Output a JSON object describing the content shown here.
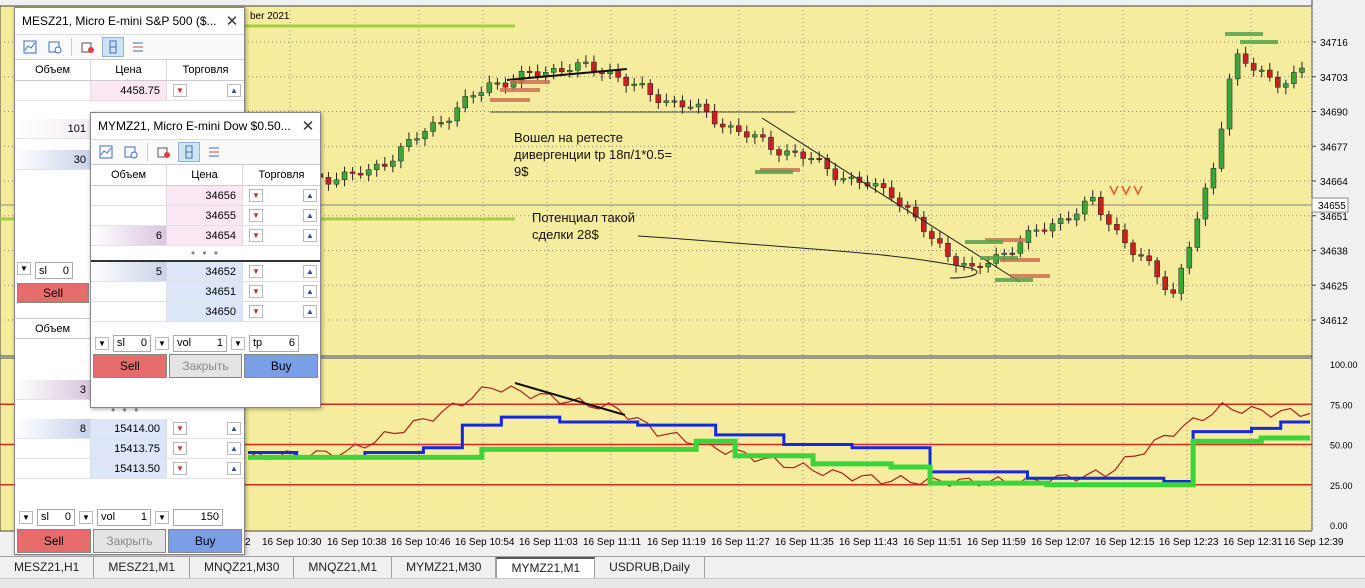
{
  "chart": {
    "header_text": "ber 2021",
    "price_labels": [
      "34716",
      "34703",
      "34690",
      "34677",
      "34664",
      "34651",
      "34638",
      "34625",
      "34612"
    ],
    "current_price": "34655",
    "osc_labels": [
      "100.00",
      "75.00",
      "50.00",
      "25.00",
      "0.00"
    ],
    "time_labels": [
      "2",
      "16 Sep 10:30",
      "16 Sep 10:38",
      "16 Sep 10:46",
      "16 Sep 10:54",
      "16 Sep 11:03",
      "16 Sep 11:11",
      "16 Sep 11:19",
      "16 Sep 11:27",
      "16 Sep 11:35",
      "16 Sep 11:43",
      "16 Sep 11:51",
      "16 Sep 11:59",
      "16 Sep 12:07",
      "16 Sep 12:15",
      "16 Sep 12:23",
      "16 Sep 12:31",
      "16 Sep 12:39"
    ],
    "annotations": {
      "note1": "Вошел на ретесте\nдивергенции tp 18п/1*0.5=\n9$",
      "note2": "Потенциал такой\nсделки 28$"
    },
    "colors": {
      "background": "#f5ec9e",
      "bull": "#3aa63a",
      "bear": "#c82020",
      "grid": "#888888",
      "blue_line": "#1428e0",
      "green_line": "#3cd43c",
      "red_osc": "#b02020",
      "level_line": "#dd2222"
    }
  },
  "bottom_tabs": [
    "MESZ21,H1",
    "MESZ21,M1",
    "MNQZ21,M30",
    "MNQZ21,M1",
    "MYMZ21,M30",
    "MYMZ21,M1",
    "USDRUB,Daily"
  ],
  "active_tab": "MYMZ21,M1",
  "window_back": {
    "title": "MESZ21, Micro E-mini S&P 500 ($...",
    "col_volume": "Объем",
    "col_price": "Цена",
    "col_trade": "Торговля",
    "rows_top": [
      {
        "vol": "",
        "price": "4458.75"
      },
      {
        "vol": "101",
        "price": ""
      },
      {
        "vol": "30",
        "price": ""
      }
    ],
    "sl_label": "sl",
    "sl_value": "0",
    "sell": "Sell"
  },
  "window_left": {
    "col_volume": "Объем",
    "rows": [
      {
        "vol": "3",
        "price": ""
      },
      {
        "vol": "8",
        "price": "15414.00"
      },
      {
        "vol": "",
        "price": "15413.75"
      },
      {
        "vol": "",
        "price": "15413.50"
      }
    ],
    "sl_label": "sl",
    "sl_value": "0",
    "vol_label": "vol",
    "vol_value": "1",
    "tp_value": "150",
    "sell": "Sell",
    "close": "Закрыть",
    "buy": "Buy"
  },
  "window_front": {
    "title": "MYMZ21, Micro E-mini Dow $0.50...",
    "col_volume": "Объем",
    "col_price": "Цена",
    "col_trade": "Торговля",
    "asks": [
      {
        "vol": "",
        "price": "34656"
      },
      {
        "vol": "",
        "price": "34655"
      },
      {
        "vol": "6",
        "price": "34654"
      }
    ],
    "bids": [
      {
        "vol": "5",
        "price": "34652"
      },
      {
        "vol": "",
        "price": "34651"
      },
      {
        "vol": "",
        "price": "34650"
      }
    ],
    "dots": "• • •",
    "sl_label": "sl",
    "sl_value": "0",
    "vol_label": "vol",
    "vol_value": "1",
    "tp_label": "tp",
    "tp_value": "6",
    "sell": "Sell",
    "close": "Закрыть",
    "buy": "Buy"
  }
}
